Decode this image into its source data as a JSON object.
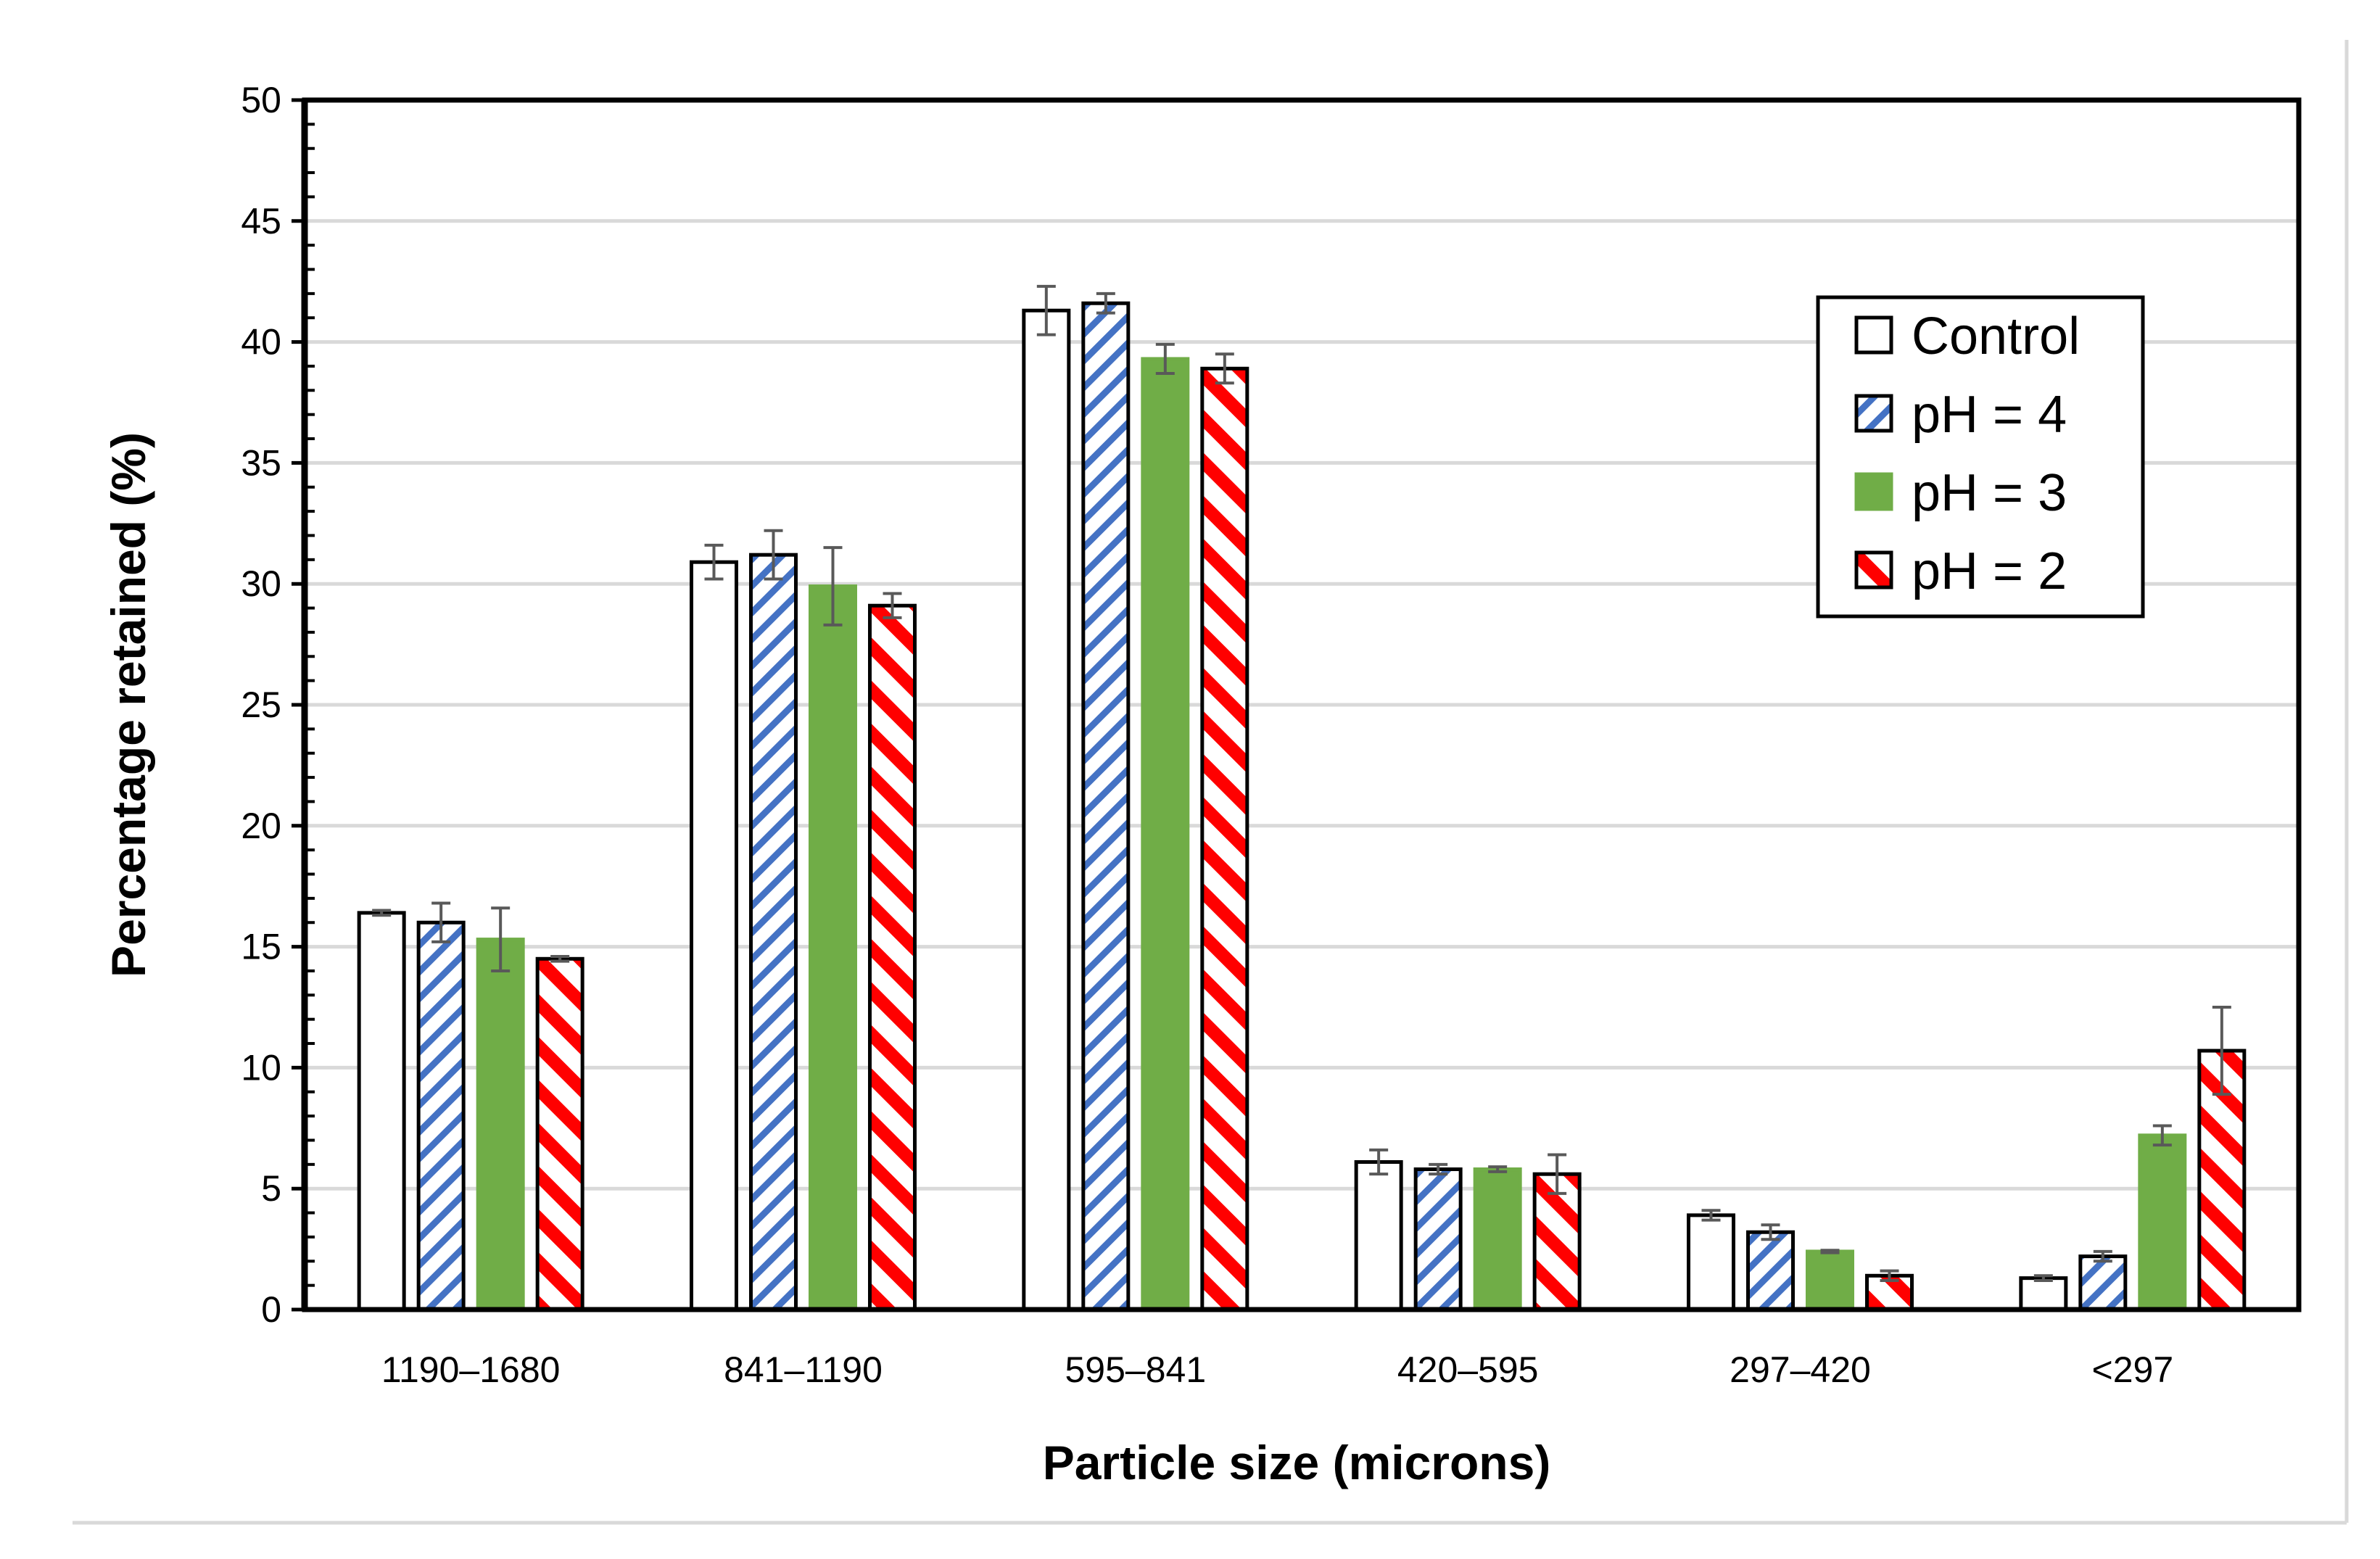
{
  "chart_data": {
    "type": "bar",
    "title": "",
    "xlabel": "Particle size (microns)",
    "ylabel": "Percentage retained (%)",
    "ylim": [
      0,
      50
    ],
    "ytick_step": 5,
    "yticks": [
      "0",
      "5",
      "10",
      "15",
      "20",
      "25",
      "30",
      "35",
      "40",
      "45",
      "50"
    ],
    "grid": true,
    "legend_position": "top-right",
    "categories": [
      "1190–1680",
      "841–1190",
      "595–841",
      "420–595",
      "297–420",
      "<297"
    ],
    "series": [
      {
        "name": "Control",
        "pattern": "solid",
        "fill": "#ffffff",
        "color": "#000000",
        "values": [
          16.4,
          30.9,
          41.3,
          6.1,
          3.9,
          1.3
        ],
        "errors": [
          0.1,
          0.7,
          1.0,
          0.5,
          0.2,
          0.1
        ]
      },
      {
        "name": "pH = 4",
        "pattern": "diagonal-hatch",
        "fill": "#ffffff",
        "color": "#4472C4",
        "values": [
          16.0,
          31.2,
          41.6,
          5.8,
          3.2,
          2.2
        ],
        "errors": [
          0.8,
          1.0,
          0.4,
          0.2,
          0.3,
          0.2
        ]
      },
      {
        "name": "pH = 3",
        "pattern": "solid",
        "fill": "#70AD47",
        "color": "#70AD47",
        "values": [
          15.3,
          29.9,
          39.3,
          5.8,
          2.4,
          7.2
        ],
        "errors": [
          1.3,
          1.6,
          0.6,
          0.1,
          0.05,
          0.4
        ]
      },
      {
        "name": "pH = 2",
        "pattern": "wide-diagonal-hatch",
        "fill": "#ffffff",
        "color": "#FF0000",
        "values": [
          14.5,
          29.1,
          38.9,
          5.6,
          1.4,
          10.7
        ],
        "errors": [
          0.1,
          0.5,
          0.6,
          0.8,
          0.2,
          1.8
        ]
      }
    ]
  }
}
